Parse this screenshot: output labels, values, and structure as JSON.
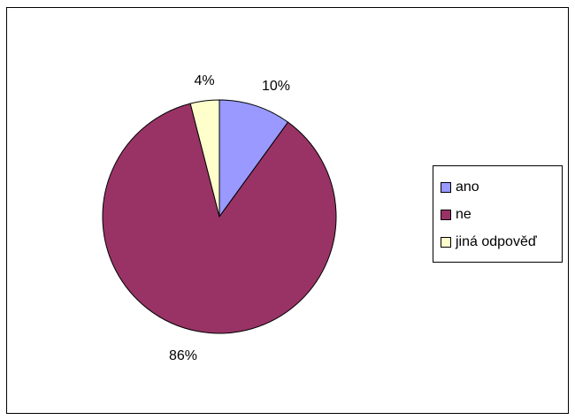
{
  "chart_data": {
    "type": "pie",
    "title": "",
    "categories": [
      "ano",
      "ne",
      "jiná odpověď"
    ],
    "values": [
      10,
      86,
      4
    ],
    "labels": [
      "10%",
      "86%",
      "4%"
    ],
    "colors": [
      "#9999FF",
      "#993366",
      "#FFFFCC"
    ],
    "start_angle": "12 o'clock",
    "direction": "clockwise",
    "legend": {
      "position": "right",
      "entries": [
        "ano",
        "ne",
        "jiná odpověď"
      ]
    }
  }
}
